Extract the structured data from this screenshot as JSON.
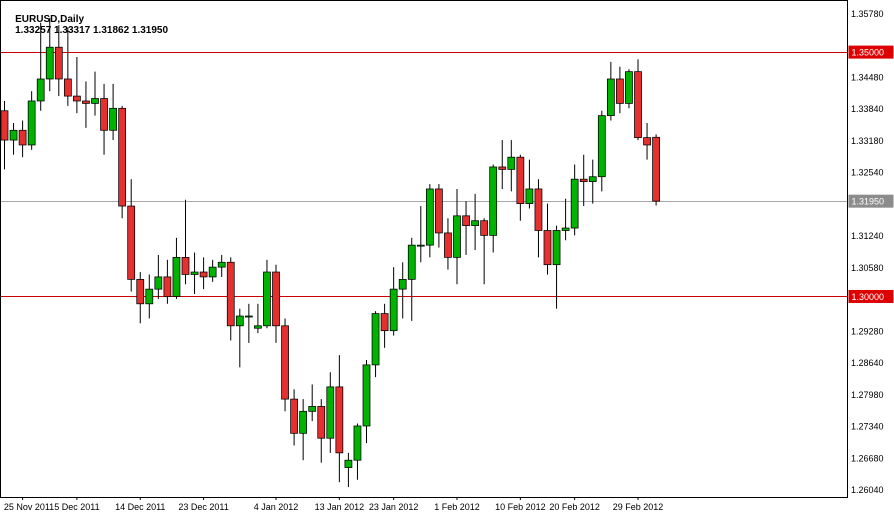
{
  "title": {
    "symbol_period": "EURUSD,Daily",
    "ohlc": "1.33257 1.33317 1.31862 1.31950"
  },
  "colors": {
    "background": "#ffffff",
    "frame": "#000000",
    "candle_up": "#00b300",
    "candle_down": "#e53030",
    "candle_outline": "#000000",
    "wick": "#000000",
    "resistance_support_line": "#cc0000",
    "current_price_line": "#a8a8a8",
    "badge_red_bg": "#dd0000",
    "badge_gray_bg": "#8c8c8c",
    "badge_text": "#ffffff",
    "axis_text": "#000000"
  },
  "y_axis": {
    "tick_labels": [
      "1.35780",
      "1.34480",
      "1.33840",
      "1.33180",
      "1.32540",
      "1.31240",
      "1.30580",
      "1.29280",
      "1.28640",
      "1.27980",
      "1.27340",
      "1.26680",
      "1.26040"
    ]
  },
  "x_axis": {
    "labels": [
      {
        "label": "25 Nov 2011",
        "index": 2
      },
      {
        "label": "5 Dec 2011",
        "index": 8
      },
      {
        "label": "14 Dec 2011",
        "index": 15
      },
      {
        "label": "23 Dec 2011",
        "index": 22
      },
      {
        "label": "4 Jan 2012",
        "index": 30
      },
      {
        "label": "13 Jan 2012",
        "index": 37
      },
      {
        "label": "23 Jan 2012",
        "index": 43
      },
      {
        "label": "1 Feb 2012",
        "index": 50
      },
      {
        "label": "10 Feb 2012",
        "index": 57
      },
      {
        "label": "20 Feb 2012",
        "index": 63
      },
      {
        "label": "29 Feb 2012",
        "index": 70
      }
    ]
  },
  "price_lines": [
    {
      "name": "resistance-line",
      "price": 1.35,
      "label": "1.35000",
      "style": "red"
    },
    {
      "name": "support-line",
      "price": 1.3,
      "label": "1.30000",
      "style": "red"
    },
    {
      "name": "current-price-line",
      "price": 1.3195,
      "label": "1.31950",
      "style": "gray"
    }
  ],
  "chart_data": {
    "type": "candlestick",
    "symbol": "EURUSD",
    "timeframe": "Daily",
    "title": "EURUSD,Daily 1.33257 1.33317 1.31862 1.31950",
    "last_ohlc": {
      "open": 1.33257,
      "high": 1.33317,
      "low": 1.31862,
      "close": 1.3195
    },
    "visible_price_range": [
      1.2604,
      1.3578
    ],
    "grid": false,
    "legend_position": "none",
    "candles": [
      [
        "23 Nov 2011",
        1.338,
        1.34,
        1.326,
        1.332
      ],
      [
        "24 Nov 2011",
        1.332,
        1.3355,
        1.329,
        1.334
      ],
      [
        "25 Nov 2011",
        1.334,
        1.336,
        1.3285,
        1.331
      ],
      [
        "28 Nov 2011",
        1.331,
        1.342,
        1.33,
        1.34
      ],
      [
        "29 Nov 2011",
        1.34,
        1.356,
        1.338,
        1.3445
      ],
      [
        "30 Nov 2011",
        1.3445,
        1.357,
        1.342,
        1.351
      ],
      [
        "1 Dec 2011",
        1.351,
        1.3555,
        1.341,
        1.3445
      ],
      [
        "2 Dec 2011",
        1.3445,
        1.355,
        1.339,
        1.341
      ],
      [
        "5 Dec 2011",
        1.341,
        1.349,
        1.3375,
        1.34
      ],
      [
        "6 Dec 2011",
        1.34,
        1.344,
        1.3345,
        1.3395
      ],
      [
        "7 Dec 2011",
        1.3395,
        1.346,
        1.337,
        1.3405
      ],
      [
        "8 Dec 2011",
        1.3405,
        1.3435,
        1.329,
        1.334
      ],
      [
        "9 Dec 2011",
        1.334,
        1.3435,
        1.332,
        1.3385
      ],
      [
        "12 Dec 2011",
        1.3385,
        1.339,
        1.316,
        1.3185
      ],
      [
        "13 Dec 2011",
        1.3185,
        1.324,
        1.301,
        1.3035
      ],
      [
        "14 Dec 2011",
        1.3035,
        1.305,
        1.2945,
        1.2985
      ],
      [
        "15 Dec 2011",
        1.2985,
        1.3045,
        1.2955,
        1.3015
      ],
      [
        "16 Dec 2011",
        1.3015,
        1.3085,
        1.2995,
        1.304
      ],
      [
        "19 Dec 2011",
        1.304,
        1.3075,
        1.2985,
        1.3
      ],
      [
        "20 Dec 2011",
        1.3,
        1.312,
        1.2995,
        1.308
      ],
      [
        "21 Dec 2011",
        1.308,
        1.3198,
        1.3025,
        1.3045
      ],
      [
        "22 Dec 2011",
        1.3045,
        1.309,
        1.3005,
        1.305
      ],
      [
        "23 Dec 2011",
        1.305,
        1.308,
        1.3015,
        1.304
      ],
      [
        "26 Dec 2011",
        1.304,
        1.3075,
        1.303,
        1.306
      ],
      [
        "27 Dec 2011",
        1.306,
        1.3085,
        1.304,
        1.307
      ],
      [
        "28 Dec 2011",
        1.307,
        1.308,
        1.291,
        1.294
      ],
      [
        "29 Dec 2011",
        1.294,
        1.2975,
        1.2855,
        1.296
      ],
      [
        "30 Dec 2011",
        1.296,
        1.2985,
        1.2905,
        1.296
      ],
      [
        "2 Jan 2012",
        1.2935,
        1.2985,
        1.2925,
        1.294
      ],
      [
        "3 Jan 2012",
        1.294,
        1.3075,
        1.2935,
        1.305
      ],
      [
        "4 Jan 2012",
        1.305,
        1.3065,
        1.2905,
        1.294
      ],
      [
        "5 Jan 2012",
        1.294,
        1.2955,
        1.2765,
        1.279
      ],
      [
        "6 Jan 2012",
        1.279,
        1.281,
        1.2695,
        1.272
      ],
      [
        "9 Jan 2012",
        1.272,
        1.279,
        1.2665,
        1.2765
      ],
      [
        "10 Jan 2012",
        1.2765,
        1.282,
        1.2745,
        1.2775
      ],
      [
        "11 Jan 2012",
        1.2775,
        1.279,
        1.266,
        1.271
      ],
      [
        "12 Jan 2012",
        1.271,
        1.2845,
        1.268,
        1.2815
      ],
      [
        "13 Jan 2012",
        1.2815,
        1.288,
        1.262,
        1.268
      ],
      [
        "16 Jan 2012",
        1.265,
        1.268,
        1.261,
        1.2665
      ],
      [
        "17 Jan 2012",
        1.2665,
        1.274,
        1.2625,
        1.2735
      ],
      [
        "18 Jan 2012",
        1.2735,
        1.287,
        1.27,
        1.286
      ],
      [
        "19 Jan 2012",
        1.286,
        1.297,
        1.2835,
        1.2965
      ],
      [
        "20 Jan 2012",
        1.2965,
        1.2985,
        1.2895,
        1.293
      ],
      [
        "23 Jan 2012",
        1.293,
        1.306,
        1.292,
        1.3015
      ],
      [
        "24 Jan 2012",
        1.3015,
        1.307,
        1.2955,
        1.3035
      ],
      [
        "25 Jan 2012",
        1.3035,
        1.312,
        1.295,
        1.3105
      ],
      [
        "26 Jan 2012",
        1.3105,
        1.3185,
        1.307,
        1.3105
      ],
      [
        "27 Jan 2012",
        1.3105,
        1.323,
        1.308,
        1.322
      ],
      [
        "30 Jan 2012",
        1.322,
        1.323,
        1.31,
        1.313
      ],
      [
        "31 Jan 2012",
        1.313,
        1.316,
        1.3055,
        1.308
      ],
      [
        "1 Feb 2012",
        1.308,
        1.322,
        1.3025,
        1.3165
      ],
      [
        "2 Feb 2012",
        1.3165,
        1.3195,
        1.3085,
        1.3145
      ],
      [
        "3 Feb 2012",
        1.3145,
        1.321,
        1.3095,
        1.3155
      ],
      [
        "6 Feb 2012",
        1.3155,
        1.316,
        1.3025,
        1.3125
      ],
      [
        "7 Feb 2012",
        1.3125,
        1.327,
        1.309,
        1.3265
      ],
      [
        "8 Feb 2012",
        1.3265,
        1.332,
        1.322,
        1.326
      ],
      [
        "9 Feb 2012",
        1.326,
        1.332,
        1.3215,
        1.3285
      ],
      [
        "10 Feb 2012",
        1.3285,
        1.329,
        1.3155,
        1.319
      ],
      [
        "13 Feb 2012",
        1.319,
        1.328,
        1.318,
        1.322
      ],
      [
        "14 Feb 2012",
        1.322,
        1.324,
        1.308,
        1.3135
      ],
      [
        "15 Feb 2012",
        1.3135,
        1.319,
        1.3045,
        1.3065
      ],
      [
        "16 Feb 2012",
        1.3065,
        1.3145,
        1.2975,
        1.3135
      ],
      [
        "17 Feb 2012",
        1.3135,
        1.32,
        1.3115,
        1.314
      ],
      [
        "20 Feb 2012",
        1.314,
        1.327,
        1.3125,
        1.324
      ],
      [
        "21 Feb 2012",
        1.324,
        1.329,
        1.3185,
        1.3235
      ],
      [
        "22 Feb 2012",
        1.3235,
        1.328,
        1.319,
        1.3245
      ],
      [
        "23 Feb 2012",
        1.3245,
        1.338,
        1.3215,
        1.337
      ],
      [
        "24 Feb 2012",
        1.337,
        1.348,
        1.336,
        1.3445
      ],
      [
        "27 Feb 2012",
        1.3445,
        1.347,
        1.3375,
        1.3395
      ],
      [
        "28 Feb 2012",
        1.3395,
        1.3465,
        1.3385,
        1.346
      ],
      [
        "29 Feb 2012",
        1.346,
        1.3485,
        1.332,
        1.3325
      ],
      [
        "1 Mar 2012",
        1.3325,
        1.3355,
        1.328,
        1.331
      ],
      [
        "2 Mar 2012",
        1.33257,
        1.33317,
        1.31862,
        1.3195
      ]
    ]
  }
}
